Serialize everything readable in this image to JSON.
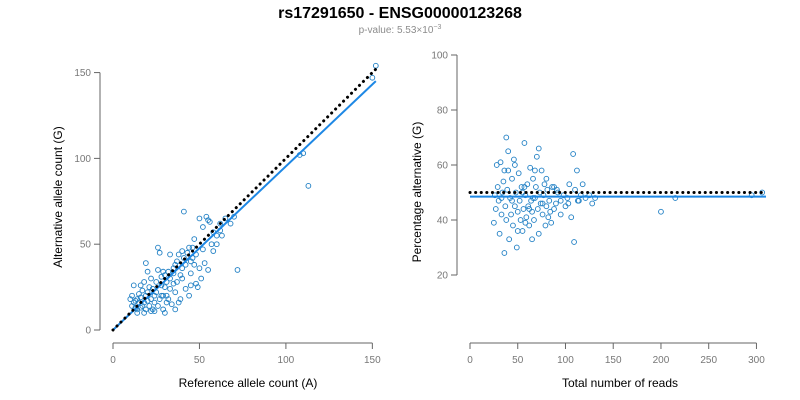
{
  "figure": {
    "title": "rs17291650 - ENSG00000123268",
    "subtitle_prefix": "p-value: 5.53×10",
    "subtitle_exponent": "−3"
  },
  "colors": {
    "points": "#1f7fc4",
    "fit_line": "#1e88e5",
    "reference_line": "#000000",
    "axis": "#666666",
    "tick_labels": "#777777",
    "subtitle": "#8c8c8c"
  },
  "chart_data": [
    {
      "type": "scatter",
      "xlabel": "Reference allele count (A)",
      "ylabel": "Alternative allele count (G)",
      "xlim": [
        0,
        155
      ],
      "ylim": [
        0,
        155
      ],
      "xticks": [
        0,
        50,
        100,
        150
      ],
      "yticks": [
        0,
        50,
        100,
        150
      ],
      "tick_labels_x": [
        "0",
        "50",
        "100",
        "150"
      ],
      "tick_labels_y": [
        "0",
        "50",
        "100",
        "150"
      ],
      "grid": false,
      "legend": "none",
      "reference_line": {
        "from": [
          0,
          0
        ],
        "to": [
          152,
          152
        ],
        "style": "dotted"
      },
      "fit_line": {
        "from": [
          0,
          0
        ],
        "to": [
          152,
          145
        ],
        "style": "solid"
      },
      "points": [
        [
          10,
          18
        ],
        [
          11,
          14
        ],
        [
          11,
          20
        ],
        [
          12,
          16
        ],
        [
          12,
          26
        ],
        [
          13,
          17
        ],
        [
          13,
          13
        ],
        [
          14,
          12
        ],
        [
          14,
          18
        ],
        [
          15,
          16
        ],
        [
          15,
          21
        ],
        [
          16,
          13
        ],
        [
          16,
          19
        ],
        [
          17,
          14
        ],
        [
          17,
          23
        ],
        [
          18,
          10
        ],
        [
          18,
          16
        ],
        [
          18,
          28
        ],
        [
          19,
          20
        ],
        [
          19,
          12
        ],
        [
          20,
          22
        ],
        [
          20,
          17
        ],
        [
          21,
          25
        ],
        [
          21,
          14
        ],
        [
          22,
          18
        ],
        [
          22,
          30
        ],
        [
          23,
          24
        ],
        [
          23,
          12
        ],
        [
          24,
          20
        ],
        [
          24,
          16
        ],
        [
          25,
          28
        ],
        [
          25,
          22
        ],
        [
          26,
          48
        ],
        [
          26,
          35
        ],
        [
          27,
          45
        ],
        [
          27,
          18
        ],
        [
          28,
          26
        ],
        [
          28,
          31
        ],
        [
          29,
          20
        ],
        [
          29,
          12
        ],
        [
          30,
          32
        ],
        [
          30,
          25
        ],
        [
          31,
          28
        ],
        [
          31,
          20
        ],
        [
          32,
          34
        ],
        [
          32,
          18
        ],
        [
          33,
          30
        ],
        [
          33,
          24
        ],
        [
          34,
          15
        ],
        [
          35,
          27
        ],
        [
          35,
          33
        ],
        [
          36,
          38
        ],
        [
          36,
          22
        ],
        [
          37,
          40
        ],
        [
          37,
          28
        ],
        [
          38,
          44
        ],
        [
          39,
          32
        ],
        [
          39,
          18
        ],
        [
          40,
          36
        ],
        [
          40,
          46
        ],
        [
          41,
          69
        ],
        [
          41,
          42
        ],
        [
          42,
          38
        ],
        [
          42,
          24
        ],
        [
          43,
          45
        ],
        [
          44,
          48
        ],
        [
          45,
          40
        ],
        [
          45,
          33
        ],
        [
          46,
          48
        ],
        [
          46,
          42
        ],
        [
          47,
          38
        ],
        [
          48,
          44
        ],
        [
          48,
          27
        ],
        [
          50,
          65
        ],
        [
          50,
          36
        ],
        [
          51,
          30
        ],
        [
          52,
          47
        ],
        [
          53,
          39
        ],
        [
          54,
          66
        ],
        [
          55,
          35
        ],
        [
          56,
          63
        ],
        [
          57,
          50
        ],
        [
          58,
          57
        ],
        [
          60,
          55
        ],
        [
          60,
          50
        ],
        [
          62,
          62
        ],
        [
          63,
          55
        ],
        [
          65,
          65
        ],
        [
          68,
          62
        ],
        [
          70,
          66
        ],
        [
          72,
          35
        ],
        [
          108,
          102
        ],
        [
          110,
          103
        ],
        [
          113,
          84
        ],
        [
          150,
          147
        ],
        [
          152,
          154
        ],
        [
          14,
          10
        ],
        [
          16,
          26
        ],
        [
          19,
          39
        ],
        [
          22,
          11
        ],
        [
          26,
          14
        ],
        [
          29,
          34
        ],
        [
          33,
          44
        ],
        [
          36,
          12
        ],
        [
          44,
          20
        ],
        [
          49,
          25
        ],
        [
          52,
          60
        ],
        [
          58,
          46
        ],
        [
          30,
          10
        ],
        [
          40,
          30
        ],
        [
          55,
          64
        ],
        [
          62,
          58
        ],
        [
          47,
          53
        ],
        [
          35,
          36
        ],
        [
          24,
          11
        ],
        [
          28,
          20
        ],
        [
          38,
          16
        ],
        [
          45,
          26
        ],
        [
          20,
          34
        ],
        [
          31,
          16
        ]
      ]
    },
    {
      "type": "scatter",
      "xlabel": "Total number of reads",
      "ylabel": "Percentage alternative (G)",
      "xlim": [
        0,
        310
      ],
      "ylim": [
        0,
        100
      ],
      "xticks": [
        0,
        50,
        100,
        150,
        200,
        250,
        300
      ],
      "yticks": [
        20,
        40,
        60,
        80,
        100
      ],
      "tick_labels_x": [
        "0",
        "50",
        "100",
        "150",
        "200",
        "250",
        "300"
      ],
      "tick_labels_y": [
        "20",
        "40",
        "60",
        "80",
        "100"
      ],
      "grid": false,
      "legend": "none",
      "reference_line": {
        "from": [
          0,
          50
        ],
        "to": [
          310,
          50
        ],
        "style": "dotted"
      },
      "fit_line": {
        "from": [
          0,
          48.5
        ],
        "to": [
          310,
          48.5
        ],
        "style": "solid"
      },
      "points": [
        [
          25,
          39
        ],
        [
          27,
          44
        ],
        [
          28,
          60
        ],
        [
          29,
          52
        ],
        [
          30,
          47
        ],
        [
          31,
          35
        ],
        [
          32,
          61
        ],
        [
          33,
          42
        ],
        [
          34,
          50
        ],
        [
          35,
          54
        ],
        [
          36,
          28
        ],
        [
          37,
          45
        ],
        [
          38,
          70
        ],
        [
          38,
          40
        ],
        [
          39,
          51
        ],
        [
          40,
          58
        ],
        [
          41,
          33
        ],
        [
          42,
          48
        ],
        [
          43,
          42
        ],
        [
          44,
          55
        ],
        [
          45,
          38
        ],
        [
          46,
          62
        ],
        [
          47,
          45
        ],
        [
          48,
          50
        ],
        [
          49,
          30
        ],
        [
          50,
          43
        ],
        [
          51,
          57
        ],
        [
          52,
          47
        ],
        [
          53,
          40
        ],
        [
          54,
          52
        ],
        [
          55,
          36
        ],
        [
          56,
          44
        ],
        [
          57,
          68
        ],
        [
          58,
          49
        ],
        [
          59,
          41
        ],
        [
          60,
          53
        ],
        [
          61,
          45
        ],
        [
          62,
          38
        ],
        [
          63,
          59
        ],
        [
          64,
          47
        ],
        [
          65,
          43
        ],
        [
          66,
          55
        ],
        [
          67,
          40
        ],
        [
          68,
          48
        ],
        [
          69,
          52
        ],
        [
          70,
          63
        ],
        [
          71,
          44
        ],
        [
          72,
          35
        ],
        [
          73,
          50
        ],
        [
          74,
          46
        ],
        [
          75,
          58
        ],
        [
          76,
          42
        ],
        [
          77,
          49
        ],
        [
          78,
          53
        ],
        [
          79,
          38
        ],
        [
          80,
          45
        ],
        [
          81,
          51
        ],
        [
          82,
          41
        ],
        [
          83,
          47
        ],
        [
          85,
          39
        ],
        [
          86,
          52
        ],
        [
          88,
          44
        ],
        [
          90,
          46
        ],
        [
          92,
          50
        ],
        [
          95,
          42
        ],
        [
          98,
          49
        ],
        [
          100,
          45
        ],
        [
          102,
          48
        ],
        [
          104,
          53
        ],
        [
          106,
          41
        ],
        [
          108,
          64
        ],
        [
          109,
          32
        ],
        [
          110,
          51
        ],
        [
          112,
          58
        ],
        [
          114,
          47
        ],
        [
          116,
          49
        ],
        [
          118,
          53
        ],
        [
          121,
          48
        ],
        [
          125,
          49
        ],
        [
          128,
          46
        ],
        [
          131,
          48
        ],
        [
          200,
          43
        ],
        [
          215,
          48
        ],
        [
          295,
          49
        ],
        [
          306,
          50
        ],
        [
          40,
          65
        ],
        [
          55,
          50
        ],
        [
          65,
          33
        ],
        [
          72,
          66
        ],
        [
          80,
          55
        ],
        [
          88,
          52
        ],
        [
          95,
          47
        ],
        [
          33,
          48
        ],
        [
          44,
          47
        ],
        [
          50,
          36
        ],
        [
          57,
          52
        ],
        [
          62,
          44
        ],
        [
          68,
          58
        ],
        [
          76,
          46
        ],
        [
          84,
          43
        ],
        [
          91,
          51
        ],
        [
          103,
          46
        ],
        [
          113,
          47
        ],
        [
          26,
          49
        ],
        [
          36,
          58
        ],
        [
          47,
          60
        ],
        [
          58,
          39
        ],
        [
          66,
          48
        ]
      ]
    }
  ]
}
